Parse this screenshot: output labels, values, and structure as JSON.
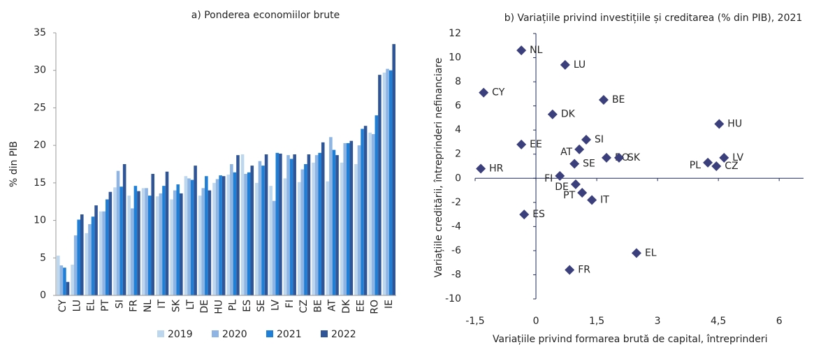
{
  "chart_data": [
    {
      "type": "bar",
      "title": "a) Ponderea economiilor brute",
      "y_label": "% din PIB",
      "categories": [
        "CY",
        "LU",
        "EL",
        "PT",
        "SI",
        "FR",
        "NL",
        "IT",
        "SK",
        "LT",
        "DE",
        "HU",
        "PL",
        "ES",
        "SE",
        "LV",
        "FI",
        "CZ",
        "BE",
        "AT",
        "DK",
        "EE",
        "RO",
        "IE"
      ],
      "series": [
        {
          "name": "2019",
          "color": "#bdd7ee",
          "values": [
            5.3,
            4.1,
            8.3,
            11.2,
            14.4,
            13.3,
            14.3,
            13.2,
            12.8,
            15.9,
            13.3,
            15.0,
            16.1,
            18.8,
            15.0,
            14.6,
            15.6,
            15.1,
            17.7,
            15.2,
            17.7,
            17.5,
            21.7,
            29.7
          ]
        },
        {
          "name": "2020",
          "color": "#8db4e2",
          "values": [
            4.0,
            8.0,
            9.5,
            11.2,
            16.6,
            11.6,
            14.3,
            13.6,
            14.0,
            15.6,
            14.3,
            15.5,
            17.5,
            16.2,
            17.9,
            12.6,
            18.7,
            16.8,
            18.7,
            21.1,
            20.3,
            20.0,
            21.5,
            30.2
          ]
        },
        {
          "name": "2021",
          "color": "#1f7fd6",
          "values": [
            3.7,
            10.1,
            10.5,
            12.8,
            14.5,
            14.6,
            13.3,
            14.6,
            14.8,
            15.4,
            15.9,
            16.0,
            16.4,
            16.4,
            17.3,
            19.0,
            18.2,
            17.5,
            19.0,
            19.4,
            20.3,
            22.2,
            24.0,
            30.0
          ]
        },
        {
          "name": "2022",
          "color": "#2f5597",
          "values": [
            1.8,
            10.8,
            12.0,
            13.8,
            17.5,
            13.9,
            16.2,
            16.5,
            13.6,
            17.3,
            14.0,
            15.9,
            18.7,
            17.3,
            18.8,
            18.9,
            18.8,
            18.8,
            20.4,
            18.7,
            20.6,
            22.6,
            29.4,
            33.5
          ]
        }
      ],
      "ylim": [
        0,
        35
      ],
      "yticks": [
        0,
        5,
        10,
        15,
        20,
        25,
        30,
        35
      ]
    },
    {
      "type": "scatter",
      "title": "b) Variațiile privind investițiile și creditarea (% din PIB), 2021",
      "x_label": "Variațiile privind formarea brută de capital, întreprinderi",
      "y_label": "Variațiile creditării, întreprinderi nefinanciare",
      "color": "#3b3f7c",
      "labels": [
        "NL",
        "LU",
        "CY",
        "BE",
        "DK",
        "HU",
        "SI",
        "EE",
        "AT",
        "RO",
        "LV",
        "SK",
        "SE",
        "PL",
        "CZ",
        "HR",
        "FI",
        "DE",
        "PT",
        "IT",
        "ES",
        "EL",
        "FR"
      ],
      "x": [
        -0.36,
        0.72,
        -1.29,
        1.67,
        0.41,
        4.52,
        1.24,
        -0.36,
        1.07,
        1.74,
        4.64,
        2.05,
        0.95,
        4.24,
        4.45,
        -1.36,
        0.59,
        0.98,
        1.14,
        1.38,
        -0.29,
        2.48,
        0.83
      ],
      "y": [
        10.6,
        9.4,
        7.1,
        6.5,
        5.3,
        4.5,
        3.2,
        2.8,
        2.4,
        1.7,
        1.7,
        1.7,
        1.2,
        1.3,
        1.0,
        0.8,
        0.2,
        -0.5,
        -1.2,
        -1.8,
        -3.0,
        -6.2,
        -7.6
      ],
      "xlim": [
        -1.5,
        6.6
      ],
      "xticks": [
        {
          "value": -1.5,
          "label": "-1,5"
        },
        0,
        {
          "value": 1.5,
          "label": "1,5"
        },
        3,
        {
          "value": 4.5,
          "label": "4,5"
        },
        6
      ],
      "ylim": [
        -10,
        12
      ],
      "yticks": [
        -10,
        -8,
        -6,
        -4,
        -2,
        0,
        2,
        4,
        6,
        8,
        10,
        12
      ]
    }
  ]
}
